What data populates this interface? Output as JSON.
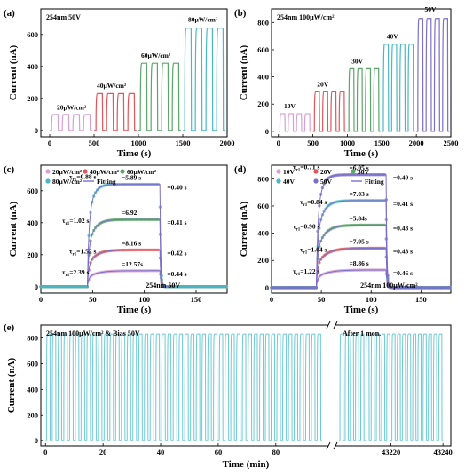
{
  "colors": {
    "pink": "#d6a0d4",
    "red": "#e2555b",
    "green": "#5aa668",
    "cyan": "#4ab7c8",
    "violet": "#7b6fc8",
    "teal": "#4e9aa3",
    "panel_e_line": "#6cc9d6"
  },
  "chart_data": [
    {
      "id": "a",
      "panel_label": "(a)",
      "type": "line",
      "condition_label": "254nm 50V",
      "xlabel": "Time (s)",
      "ylabel": "Current (nA)",
      "xlim": [
        -100,
        2000
      ],
      "ylim": [
        -40,
        760
      ],
      "xticks": [
        0,
        500,
        1000,
        1500,
        2000
      ],
      "yticks": [
        0,
        200,
        400,
        600
      ],
      "grid": false,
      "series": [
        {
          "name": "20μW/cm²",
          "color": "pink",
          "t_start": 0,
          "t_end": 480,
          "on_level": 100,
          "cycles": 4
        },
        {
          "name": "40μW/cm²",
          "color": "red",
          "t_start": 500,
          "t_end": 980,
          "on_level": 230,
          "cycles": 4
        },
        {
          "name": "60μW/cm²",
          "color": "green",
          "t_start": 1000,
          "t_end": 1480,
          "on_level": 420,
          "cycles": 4
        },
        {
          "name": "80μW/cm²",
          "color": "cyan",
          "t_start": 1500,
          "t_end": 1980,
          "on_level": 640,
          "cycles": 4
        }
      ],
      "annotations": [
        {
          "text": "20μW/cm²",
          "x": 80,
          "y": 130
        },
        {
          "text": "40μW/cm²",
          "x": 530,
          "y": 265
        },
        {
          "text": "60μW/cm²",
          "x": 1030,
          "y": 455
        },
        {
          "text": "80μW/cm²",
          "x": 1560,
          "y": 680
        }
      ]
    },
    {
      "id": "b",
      "panel_label": "(b)",
      "type": "line",
      "condition_label": "254nm 100μW/cm²",
      "xlabel": "Time (s)",
      "ylabel": "Current (nA)",
      "xlim": [
        -100,
        2500
      ],
      "ylim": [
        -40,
        900
      ],
      "xticks": [
        0,
        500,
        1000,
        1500,
        2000,
        2500
      ],
      "yticks": [
        0,
        200,
        400,
        600,
        800
      ],
      "grid": false,
      "series": [
        {
          "name": "10V",
          "color": "pink",
          "t_start": 0,
          "t_end": 480,
          "on_level": 130,
          "cycles": 4
        },
        {
          "name": "20V",
          "color": "red",
          "t_start": 500,
          "t_end": 980,
          "on_level": 290,
          "cycles": 4
        },
        {
          "name": "30V",
          "color": "green",
          "t_start": 1000,
          "t_end": 1480,
          "on_level": 460,
          "cycles": 4
        },
        {
          "name": "40V",
          "color": "cyan",
          "t_start": 1500,
          "t_end": 1980,
          "on_level": 640,
          "cycles": 4
        },
        {
          "name": "50V",
          "color": "violet",
          "t_start": 2000,
          "t_end": 2480,
          "on_level": 830,
          "cycles": 4
        }
      ],
      "annotations": [
        {
          "text": "10V",
          "x": 80,
          "y": 170
        },
        {
          "text": "20V",
          "x": 560,
          "y": 330
        },
        {
          "text": "30V",
          "x": 1060,
          "y": 500
        },
        {
          "text": "40V",
          "x": 1570,
          "y": 680
        },
        {
          "text": "50V",
          "x": 2120,
          "y": 880
        }
      ]
    },
    {
      "id": "c",
      "panel_label": "(c)",
      "type": "scatter",
      "condition_label": "254nm 50V",
      "xlabel": "Time (s)",
      "ylabel": "Current (nA)",
      "xlim": [
        0,
        180
      ],
      "ylim": [
        -40,
        760
      ],
      "xticks": [
        0,
        50,
        100,
        150
      ],
      "yticks": [
        0,
        200,
        400,
        600
      ],
      "grid": false,
      "legend": {
        "placement": "top-left",
        "fitting_label": "Fitting"
      },
      "rise_start": 45,
      "fall_start": 115,
      "series": [
        {
          "name": "20μW/cm²",
          "color": "pink",
          "on_level": 100,
          "tau_r1": "2.39 s",
          "tau_r2": "12.57s",
          "tau_d": "0.44 s"
        },
        {
          "name": "40μW/cm²",
          "color": "red",
          "on_level": 230,
          "tau_r1": "1.52 s",
          "tau_r2": "8.16 s",
          "tau_d": "0.42 s"
        },
        {
          "name": "60μW/cm²",
          "color": "green",
          "on_level": 420,
          "tau_r1": "1.02 s",
          "tau_r2": "6.92",
          "tau_d": "0.41 s"
        },
        {
          "name": "80μW/cm²",
          "color": "cyan",
          "on_level": 640,
          "tau_r1": "0.88 s",
          "tau_r2": "5.89 s",
          "tau_d": "0.40 s"
        }
      ],
      "tau_symbols": {
        "r1": "τ",
        "r1_sub": "r1",
        "r2_sub": "r2",
        "d_sub": "d"
      }
    },
    {
      "id": "d",
      "panel_label": "(d)",
      "type": "scatter",
      "condition_label": "254nm 100μW/cm²",
      "xlabel": "Time (s)",
      "ylabel": "Current (nA)",
      "xlim": [
        0,
        180
      ],
      "ylim": [
        -40,
        900
      ],
      "xticks": [
        0,
        50,
        100,
        150
      ],
      "yticks": [
        0,
        200,
        400,
        600,
        800
      ],
      "grid": false,
      "legend": {
        "placement": "top-left",
        "fitting_label": "Fitting"
      },
      "rise_start": 45,
      "fall_start": 115,
      "series": [
        {
          "name": "10V",
          "color": "pink",
          "on_level": 130,
          "tau_r1": "1.22 s",
          "tau_r2": "8.86 s",
          "tau_d": "0.46 s"
        },
        {
          "name": "20V",
          "color": "red",
          "on_level": 290,
          "tau_r1": "1.04 s",
          "tau_r2": "7.95 s",
          "tau_d": "0.43 s"
        },
        {
          "name": "30V",
          "color": "green",
          "on_level": 460,
          "tau_r1": "0.90 s",
          "tau_r2": "5.84s",
          "tau_d": "0.43 s"
        },
        {
          "name": "40V",
          "color": "cyan",
          "on_level": 640,
          "tau_r1": "0.84 s",
          "tau_r2": "7.03 s",
          "tau_d": "0.41 s"
        },
        {
          "name": "50V",
          "color": "violet",
          "on_level": 830,
          "tau_r1": "0.71 s",
          "tau_r2": "6.05 s",
          "tau_d": "0.40 s"
        }
      ]
    },
    {
      "id": "e",
      "panel_label": "(e)",
      "type": "line",
      "condition_label": "254nm 100μW/cm² & Bias 50V",
      "after_label": "After 1 mon.",
      "xlabel": "Time (min)",
      "ylabel": "Current (nA)",
      "yticks": [
        0,
        200,
        400,
        600,
        800
      ],
      "ylim": [
        -40,
        900
      ],
      "on_level": 830,
      "grid": false,
      "segments": [
        {
          "xlim": [
            -1,
            97
          ],
          "xticks": [
            0,
            20,
            40,
            60,
            80
          ],
          "t_start": 0,
          "t_end": 96,
          "cycles": 48
        },
        {
          "xlim": [
            43200,
            43242
          ],
          "xticks": [
            43220,
            43240
          ],
          "t_start": 43200,
          "t_end": 43240,
          "cycles": 20
        }
      ]
    }
  ]
}
